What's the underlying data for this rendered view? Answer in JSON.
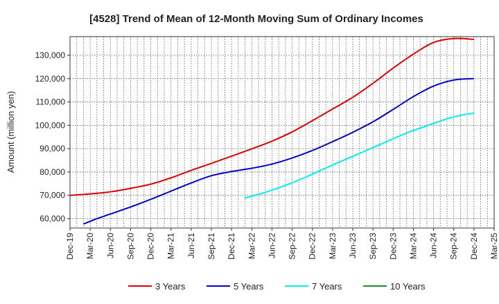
{
  "chart_data": {
    "type": "line",
    "title": "[4528]  Trend of Mean of 12-Month Moving Sum of Ordinary Incomes",
    "xlabel": "",
    "ylabel": "Amount (million yen)",
    "ylim": [
      56000,
      138000
    ],
    "yticks": [
      60000,
      70000,
      80000,
      90000,
      100000,
      110000,
      120000,
      130000
    ],
    "ytick_labels": [
      "60,000",
      "70,000",
      "80,000",
      "90,000",
      "100,000",
      "110,000",
      "120,000",
      "130,000"
    ],
    "x_range_index": [
      0,
      63
    ],
    "xtick_index": [
      0,
      3,
      6,
      9,
      12,
      15,
      18,
      21,
      24,
      27,
      30,
      33,
      36,
      39,
      42,
      45,
      48,
      51,
      54,
      57,
      60,
      63
    ],
    "xtick_labels": [
      "Dec-19",
      "Mar-20",
      "Jun-20",
      "Sep-20",
      "Dec-20",
      "Mar-21",
      "Jun-21",
      "Sep-21",
      "Dec-21",
      "Mar-22",
      "Jun-22",
      "Sep-22",
      "Dec-22",
      "Mar-23",
      "Jun-23",
      "Sep-23",
      "Dec-23",
      "Mar-24",
      "Jun-24",
      "Sep-24",
      "Dec-24",
      "Mar-25"
    ],
    "grid": true,
    "legend_position": "bottom",
    "series": [
      {
        "name": "3 Years",
        "color": "#dd0000",
        "points": [
          [
            0,
            70000
          ],
          [
            3,
            70600
          ],
          [
            6,
            71500
          ],
          [
            9,
            73000
          ],
          [
            12,
            74800
          ],
          [
            15,
            77500
          ],
          [
            18,
            80700
          ],
          [
            21,
            83700
          ],
          [
            24,
            86800
          ],
          [
            27,
            89900
          ],
          [
            30,
            93200
          ],
          [
            33,
            97200
          ],
          [
            36,
            102000
          ],
          [
            39,
            107000
          ],
          [
            42,
            112000
          ],
          [
            45,
            118000
          ],
          [
            48,
            124500
          ],
          [
            51,
            130500
          ],
          [
            54,
            135500
          ],
          [
            57,
            137200
          ],
          [
            60,
            136800
          ]
        ]
      },
      {
        "name": "5 Years",
        "color": "#0000cc",
        "points": [
          [
            2,
            57700
          ],
          [
            4,
            60000
          ],
          [
            6,
            62000
          ],
          [
            9,
            65000
          ],
          [
            12,
            68300
          ],
          [
            15,
            71800
          ],
          [
            18,
            75300
          ],
          [
            21,
            78400
          ],
          [
            24,
            80200
          ],
          [
            27,
            81600
          ],
          [
            30,
            83400
          ],
          [
            33,
            86000
          ],
          [
            36,
            89200
          ],
          [
            39,
            93000
          ],
          [
            42,
            97000
          ],
          [
            45,
            101500
          ],
          [
            48,
            106800
          ],
          [
            51,
            112300
          ],
          [
            54,
            116800
          ],
          [
            57,
            119400
          ],
          [
            60,
            120000
          ]
        ]
      },
      {
        "name": "7 Years",
        "color": "#00eeee",
        "points": [
          [
            26,
            68800
          ],
          [
            29,
            71300
          ],
          [
            32,
            74300
          ],
          [
            35,
            77800
          ],
          [
            38,
            81700
          ],
          [
            41,
            85500
          ],
          [
            44,
            89200
          ],
          [
            47,
            93000
          ],
          [
            50,
            96700
          ],
          [
            53,
            99800
          ],
          [
            56,
            102800
          ],
          [
            58,
            104300
          ],
          [
            60,
            105200
          ]
        ]
      },
      {
        "name": "10 Years",
        "color": "#228b22",
        "points": []
      }
    ]
  }
}
